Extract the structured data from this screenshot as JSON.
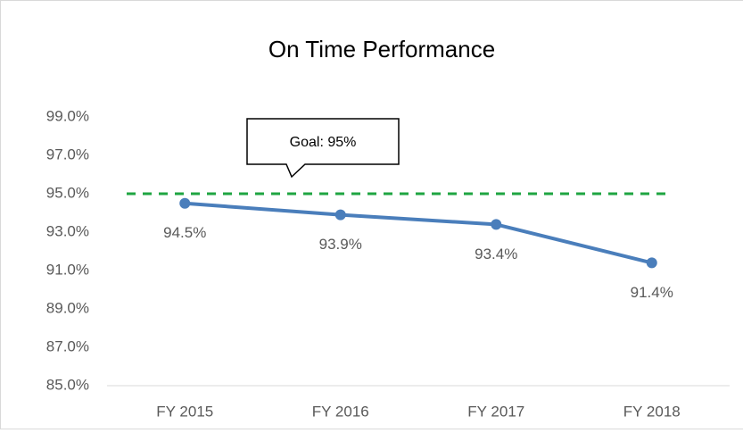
{
  "chart_data": {
    "type": "line",
    "title": "On Time Performance",
    "categories": [
      "FY 2015",
      "FY 2016",
      "FY 2017",
      "FY 2018"
    ],
    "series": [
      {
        "name": "On Time Performance",
        "color": "#4a7ebb",
        "values": [
          94.5,
          93.9,
          93.4,
          91.4
        ],
        "value_labels": [
          "94.5%",
          "93.9%",
          "93.4%",
          "91.4%"
        ]
      }
    ],
    "ylim": [
      85,
      99
    ],
    "yticks": [
      {
        "value": 85,
        "label": "85.0%"
      },
      {
        "value": 87,
        "label": "87.0%"
      },
      {
        "value": 89,
        "label": "89.0%"
      },
      {
        "value": 91,
        "label": "91.0%"
      },
      {
        "value": 93,
        "label": "93.0%"
      },
      {
        "value": 95,
        "label": "95.0%"
      },
      {
        "value": 97,
        "label": "97.0%"
      },
      {
        "value": 99,
        "label": "99.0%"
      }
    ],
    "goal": {
      "value": 95,
      "label": "Goal: 95%",
      "color": "#1fa542"
    }
  }
}
